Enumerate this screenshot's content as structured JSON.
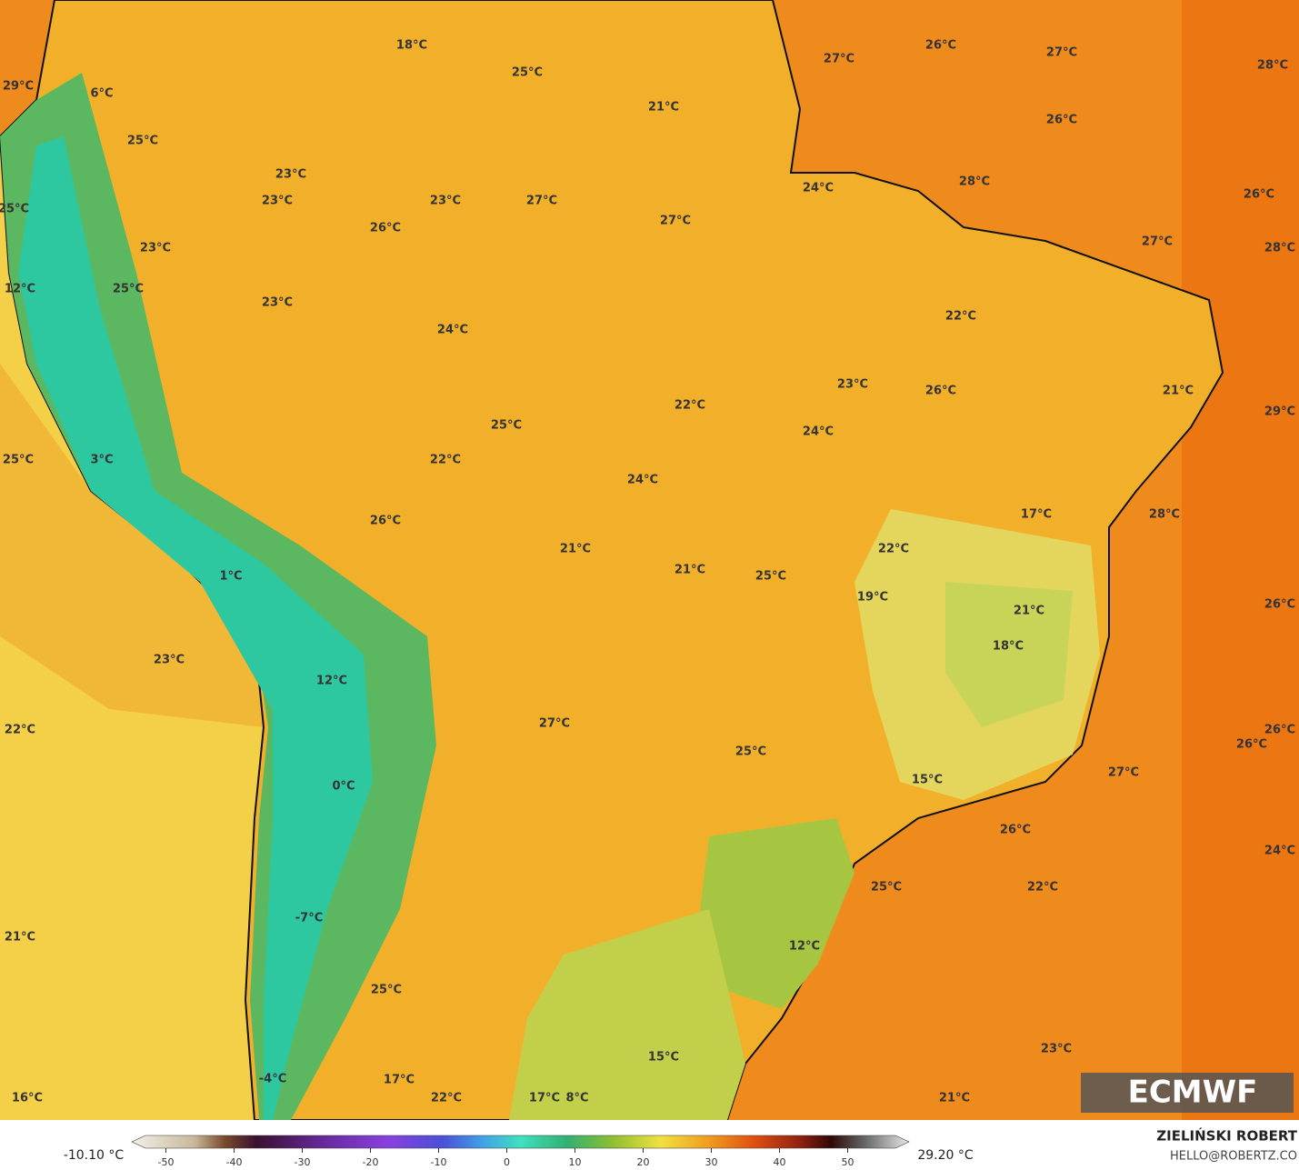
{
  "map": {
    "source": "ECMWF",
    "labels": [
      "18°C",
      "25°C",
      "26°C",
      "27°C",
      "27°C",
      "28°C",
      "29°C",
      "6°C",
      "21°C",
      "26°C",
      "25°C",
      "23°C",
      "24°C",
      "28°C",
      "26°C",
      "25°C",
      "23°C",
      "23°C",
      "27°C",
      "27°C",
      "26°C",
      "27°C",
      "28°C",
      "23°C",
      "12°C",
      "25°C",
      "23°C",
      "24°C",
      "22°C",
      "23°C",
      "26°C",
      "21°C",
      "22°C",
      "29°C",
      "25°C",
      "24°C",
      "22°C",
      "25°C",
      "3°C",
      "24°C",
      "17°C",
      "28°C",
      "26°C",
      "21°C",
      "22°C",
      "1°C",
      "21°C",
      "25°C",
      "19°C",
      "21°C",
      "26°C",
      "18°C",
      "23°C",
      "12°C",
      "27°C",
      "22°C",
      "26°C",
      "26°C",
      "25°C",
      "27°C",
      "15°C",
      "0°C",
      "26°C",
      "24°C",
      "25°C",
      "22°C",
      "21°C",
      "-7°C",
      "12°C",
      "25°C",
      "23°C",
      "15°C",
      "16°C",
      "-4°C",
      "17°C",
      "22°C",
      "17°C",
      "8°C",
      "21°C"
    ]
  },
  "legend": {
    "min_label": "-10.10 °C",
    "max_label": "29.20 °C",
    "lim": [
      -55,
      59
    ],
    "ticks": [
      -50,
      -40,
      -30,
      -20,
      -10,
      0,
      10,
      20,
      30,
      40,
      50
    ]
  },
  "credit": {
    "author": "ZIELIŃSKI ROBERT",
    "contact": "HELLO@ROBERTZ.CO"
  }
}
